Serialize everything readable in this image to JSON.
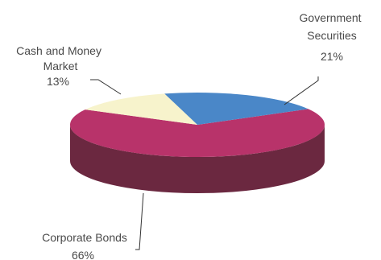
{
  "chart_data": {
    "type": "pie",
    "style": "3d",
    "slices": [
      {
        "label": "Government Securities",
        "value": 21,
        "value_label": "21%",
        "color": "#4A87C8",
        "side_color": "#2F5D8F"
      },
      {
        "label": "Corporate Bonds",
        "value": 66,
        "value_label": "66%",
        "color": "#B8336A",
        "side_color": "#6B2840"
      },
      {
        "label": "Cash and Money Market",
        "value": 13,
        "value_label": "13%",
        "color": "#F7F3CC",
        "side_color": "#CFC99C"
      }
    ],
    "legend": "none"
  }
}
